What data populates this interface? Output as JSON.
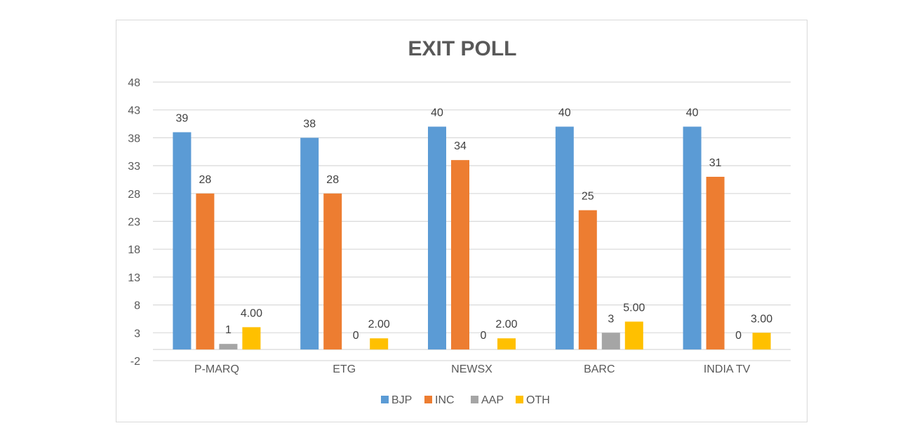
{
  "chart_data": {
    "type": "bar",
    "title": "EXIT POLL",
    "categories": [
      "P-MARQ",
      "ETG",
      "NEWSX",
      "BARC",
      "INDIA TV"
    ],
    "series": [
      {
        "name": "BJP",
        "color": "#5b9bd5",
        "values": [
          39,
          38,
          40,
          40,
          40
        ],
        "labels": [
          "39",
          "38",
          "40",
          "40",
          "40"
        ]
      },
      {
        "name": "INC",
        "color": "#ed7d31",
        "values": [
          28,
          28,
          34,
          25,
          31
        ],
        "labels": [
          "28",
          "28",
          "34",
          "25",
          "31"
        ]
      },
      {
        "name": "AAP",
        "color": "#a5a5a5",
        "values": [
          1,
          0,
          0,
          3,
          null
        ],
        "labels": [
          "1",
          "0",
          "0",
          "3",
          ""
        ]
      },
      {
        "name": "OTH",
        "color": "#ffc000",
        "values": [
          4,
          2,
          2,
          5,
          3
        ],
        "labels": [
          "4.00",
          "2.00",
          "2.00",
          "5.00",
          "3.00"
        ]
      }
    ],
    "zero_label": "0",
    "india_tv_extra_label": "0",
    "yticks": [
      "-2",
      "3",
      "8",
      "13",
      "18",
      "23",
      "28",
      "33",
      "38",
      "43",
      "48"
    ],
    "ylim": [
      -2,
      48
    ],
    "xlabel": "",
    "ylabel": "",
    "grid": true,
    "legend_position": "bottom"
  }
}
